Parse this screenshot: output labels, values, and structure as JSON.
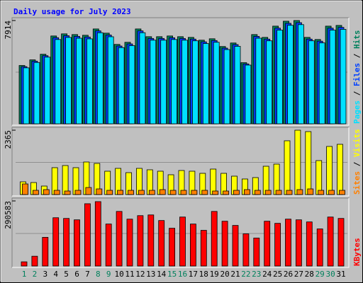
{
  "chart_data": [
    {
      "type": "bar",
      "title": "Daily usage for July 2023",
      "ylim": [
        0,
        7914
      ],
      "yticks": [
        7914
      ],
      "legend_separator": " / ",
      "series": [
        {
          "name": "Hits",
          "color": "#00805c",
          "values": [
            4469,
            4899,
            5330,
            6730,
            6892,
            6838,
            6784,
            7268,
            6945,
            6084,
            6245,
            7268,
            6676,
            6676,
            6730,
            6676,
            6622,
            6407,
            6515,
            5922,
            6192,
            4684,
            6838,
            6622,
            7484,
            7861,
            7914,
            6622,
            6461,
            7484,
            7538
          ]
        },
        {
          "name": "Files",
          "color": "#0040ff",
          "values": [
            4380,
            4800,
            5220,
            6600,
            6750,
            6700,
            6650,
            7120,
            6800,
            5960,
            6120,
            7120,
            6540,
            6540,
            6590,
            6540,
            6490,
            6280,
            6380,
            5800,
            6070,
            4590,
            6700,
            6490,
            7330,
            7700,
            7750,
            6490,
            6330,
            7330,
            7390
          ]
        },
        {
          "name": "Pages",
          "color": "#00e0ff",
          "values": [
            4290,
            4700,
            5110,
            6460,
            6620,
            6560,
            6510,
            6980,
            6670,
            5840,
            5990,
            6980,
            6410,
            6410,
            6460,
            6410,
            6360,
            6150,
            6250,
            5690,
            5940,
            4500,
            6560,
            6360,
            7180,
            7550,
            7600,
            6360,
            6200,
            7180,
            7240
          ]
        }
      ]
    },
    {
      "type": "bar",
      "ylim": [
        0,
        2365
      ],
      "yticks": [
        2365
      ],
      "legend_separator": " / ",
      "series": [
        {
          "name": "Visits",
          "color": "#ffff00",
          "values": [
            468,
            442,
            312,
            988,
            1066,
            988,
            1196,
            1144,
            858,
            962,
            806,
            962,
            910,
            858,
            728,
            884,
            858,
            780,
            936,
            780,
            676,
            572,
            624,
            1040,
            1118,
            1976,
            2365,
            2313,
            1248,
            1768,
            1846
          ]
        },
        {
          "name": "Sites",
          "color": "#ff8000",
          "values": [
            390,
            156,
            182,
            156,
            130,
            156,
            260,
            208,
            156,
            156,
            156,
            156,
            156,
            182,
            156,
            156,
            156,
            156,
            130,
            130,
            156,
            182,
            156,
            156,
            156,
            156,
            182,
            208,
            156,
            156,
            156
          ]
        }
      ]
    },
    {
      "type": "bar",
      "ylim": [
        0,
        290583
      ],
      "yticks": [
        290583
      ],
      "categories": [
        "1",
        "2",
        "3",
        "4",
        "5",
        "6",
        "7",
        "8",
        "9",
        "10",
        "11",
        "12",
        "13",
        "14",
        "15",
        "16",
        "17",
        "18",
        "19",
        "20",
        "21",
        "22",
        "23",
        "24",
        "25",
        "26",
        "27",
        "28",
        "29",
        "30",
        "31"
      ],
      "category_colors": [
        "#00805c",
        "#00805c",
        "#000000",
        "#000000",
        "#000000",
        "#000000",
        "#000000",
        "#00805c",
        "#00805c",
        "#000000",
        "#000000",
        "#000000",
        "#000000",
        "#000000",
        "#00805c",
        "#00805c",
        "#000000",
        "#000000",
        "#000000",
        "#000000",
        "#000000",
        "#00805c",
        "#00805c",
        "#000000",
        "#000000",
        "#000000",
        "#000000",
        "#000000",
        "#00805c",
        "#00805c",
        "#000000"
      ],
      "series": [
        {
          "name": "KBytes",
          "color": "#ff0000",
          "values": [
            18750,
            43750,
            128125,
            215625,
            212500,
            206250,
            278125,
            287500,
            187500,
            243750,
            209375,
            225000,
            228125,
            203125,
            168750,
            218750,
            187500,
            159375,
            243750,
            200000,
            181250,
            143750,
            125000,
            200000,
            190625,
            209375,
            206250,
            196875,
            165625,
            218750,
            212500
          ]
        }
      ]
    }
  ]
}
